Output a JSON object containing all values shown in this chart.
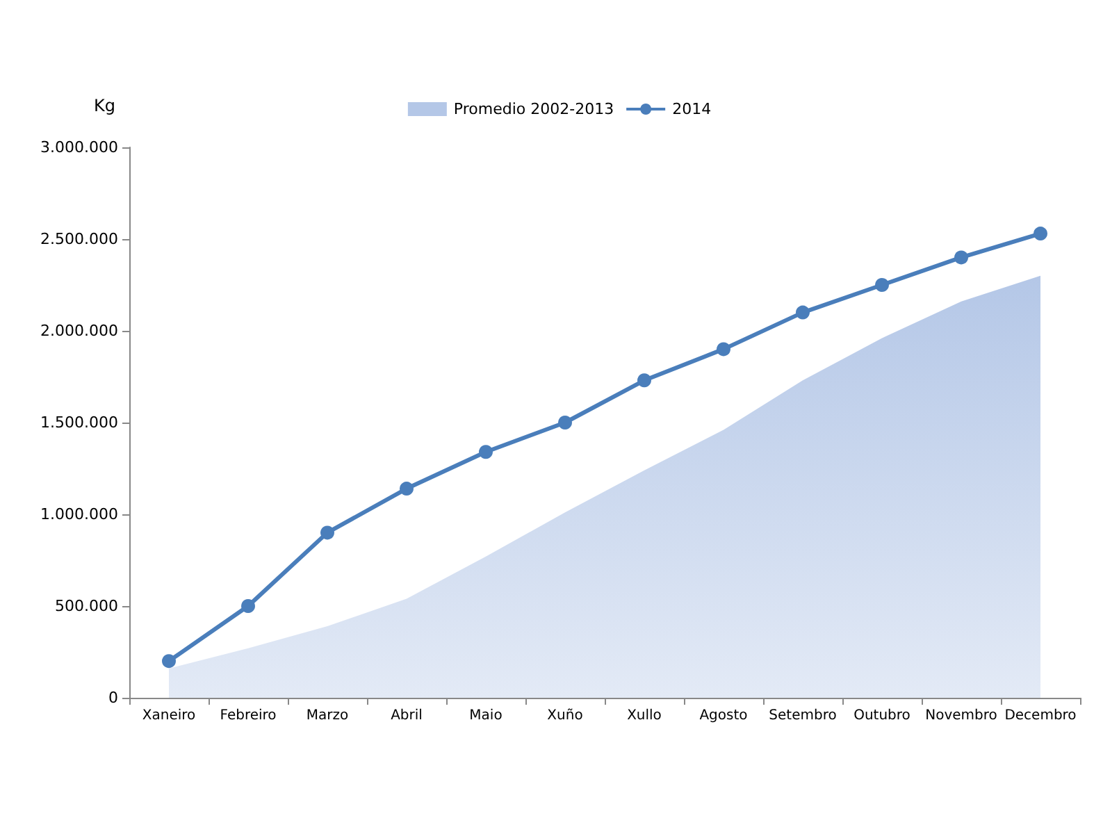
{
  "chart_data": {
    "type": "line",
    "ylabel": "Kg",
    "categories": [
      "Xaneiro",
      "Febreiro",
      "Marzo",
      "Abril",
      "Maio",
      "Xuño",
      "Xullo",
      "Agosto",
      "Setembro",
      "Outubro",
      "Novembro",
      "Decembro"
    ],
    "series": [
      {
        "name": "Promedio 2002-2013",
        "type": "area",
        "color": "#b4c7e7",
        "marker": "none",
        "values": [
          160000,
          270000,
          390000,
          540000,
          770000,
          1010000,
          1240000,
          1460000,
          1730000,
          1960000,
          2160000,
          2300000
        ]
      },
      {
        "name": "2014",
        "color": "#4a7ebb",
        "marker": "circle",
        "values": [
          200000,
          500000,
          900000,
          1140000,
          1340000,
          1500000,
          1730000,
          1900000,
          2100000,
          2250000,
          2400000,
          2530000
        ]
      }
    ],
    "ylim": [
      0,
      3000000
    ],
    "yticks": [
      0,
      {
        "value": 500000,
        "label": "500.000"
      },
      {
        "value": 1000000,
        "label": "1.000.000"
      },
      {
        "value": 1500000,
        "label": "1.500.000"
      },
      {
        "value": 2000000,
        "label": "2.000.000"
      },
      {
        "value": 2500000,
        "label": "2.500.000"
      },
      {
        "value": 3000000,
        "label": "3.000.000"
      }
    ],
    "grid": false,
    "legend": "top"
  }
}
